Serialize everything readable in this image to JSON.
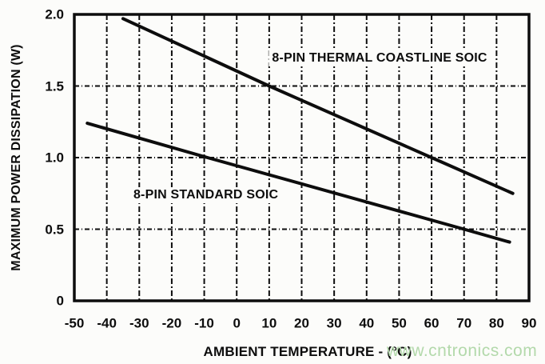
{
  "watermark": {
    "text": "www.cntronics.com",
    "color": "#b3d9ab"
  },
  "chart_data": {
    "type": "line",
    "title": "",
    "xlabel": "AMBIENT TEMPERATURE - (°C)",
    "ylabel": "MAXIMUM POWER DISSIPATION (W)",
    "xlim": [
      -50,
      90
    ],
    "ylim": [
      0,
      2
    ],
    "x_ticks": [
      -50,
      -40,
      -30,
      -20,
      -10,
      0,
      10,
      20,
      30,
      40,
      50,
      60,
      70,
      80,
      90
    ],
    "y_ticks": [
      0,
      0.5,
      1,
      1.5,
      2
    ],
    "y_tick_labels": [
      "0",
      "0.5",
      "1.0",
      "1.5",
      "2.0"
    ],
    "grid": true,
    "grid_style": "dashed",
    "legend_position": "inline-annotations",
    "line_color": "#0d0d0d",
    "series": [
      {
        "name": "8-PIN THERMAL COASTLINE SOIC",
        "x": [
          -35,
          10,
          60,
          85
        ],
        "y": [
          1.97,
          1.5,
          1.0,
          0.75
        ]
      },
      {
        "name": "8-PIN STANDARD SOIC",
        "x": [
          -46,
          -9,
          70,
          84
        ],
        "y": [
          1.24,
          1.0,
          0.5,
          0.41
        ]
      }
    ],
    "annotations": [
      {
        "text": "8-PIN THERMAL COASTLINE SOIC",
        "x": 44,
        "y": 1.69
      },
      {
        "text": "8-PIN STANDARD SOIC",
        "x": -9.5,
        "y": 0.74
      }
    ]
  }
}
